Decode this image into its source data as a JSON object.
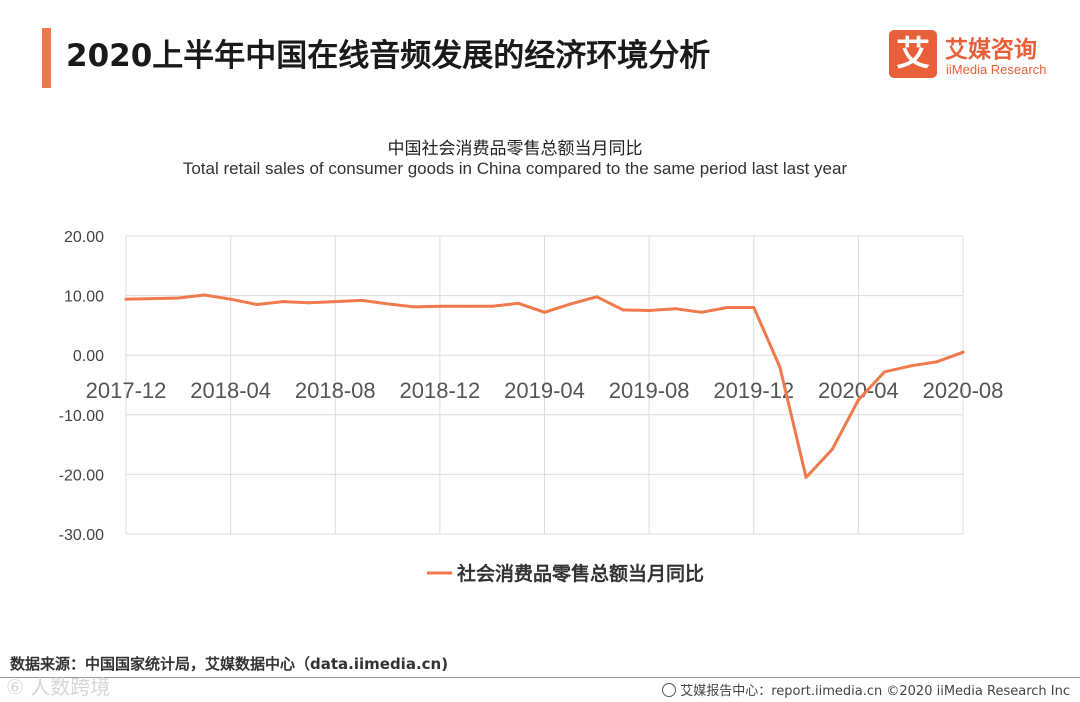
{
  "header": {
    "title": "2020上半年中国在线音频发展的经济环境分析",
    "accent_color": "#f0784a"
  },
  "logo": {
    "glyph": "艾",
    "name_cn": "艾媒咨询",
    "name_en": "iiMedia Research",
    "color": "#e8603a"
  },
  "chart_data": {
    "type": "line",
    "title": "中国社会消费品零售总额当月同比",
    "subtitle": "Total retail sales of consumer goods in China compared to the same period last last year",
    "x": [
      "2017-12",
      "2018-01",
      "2018-02",
      "2018-03",
      "2018-04",
      "2018-05",
      "2018-06",
      "2018-07",
      "2018-08",
      "2018-09",
      "2018-10",
      "2018-11",
      "2018-12",
      "2019-01",
      "2019-02",
      "2019-03",
      "2019-04",
      "2019-05",
      "2019-06",
      "2019-07",
      "2019-08",
      "2019-09",
      "2019-10",
      "2019-11",
      "2019-12",
      "2020-01",
      "2020-02",
      "2020-03",
      "2020-04",
      "2020-05",
      "2020-06",
      "2020-07",
      "2020-08"
    ],
    "x_tick_labels": [
      "2017-12",
      "2018-04",
      "2018-08",
      "2018-12",
      "2019-04",
      "2019-08",
      "2019-12",
      "2020-04",
      "2020-08"
    ],
    "y_tick_labels": [
      "20.00",
      "10.00",
      "0.00",
      "-10.00",
      "-20.00",
      "-30.00"
    ],
    "ylim": [
      -30,
      20
    ],
    "grid": true,
    "legend_position": "bottom",
    "series": [
      {
        "name": "社会消费品零售总额当月同比",
        "color": "#f07a4c",
        "values": [
          9.4,
          9.5,
          9.6,
          10.1,
          9.4,
          8.5,
          9.0,
          8.8,
          9.0,
          9.2,
          8.6,
          8.1,
          8.2,
          8.2,
          8.2,
          8.7,
          7.2,
          8.6,
          9.8,
          7.6,
          7.5,
          7.8,
          7.2,
          8.0,
          8.0,
          -2.0,
          -20.5,
          -15.8,
          -7.5,
          -2.8,
          -1.8,
          -1.1,
          0.5
        ]
      }
    ]
  },
  "source": "数据来源：中国国家统计局，艾媒数据中心（data.iimedia.cn)",
  "watermark": "⑥ 人数跨境",
  "footer": {
    "text": "艾媒报告中心：report.iimedia.cn ©2020 iiMedia Research Inc"
  }
}
